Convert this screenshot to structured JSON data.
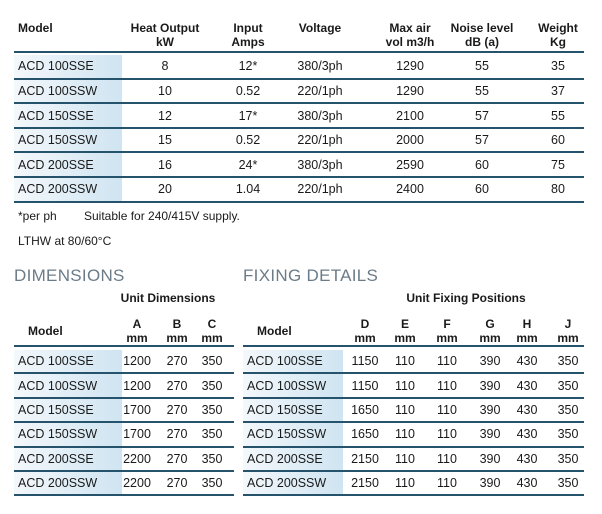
{
  "specs": {
    "headers": [
      [
        "Model"
      ],
      [
        "Heat Output",
        "kW"
      ],
      [
        "Input",
        "Amps"
      ],
      [
        "Voltage"
      ],
      [
        "Max air",
        "vol m3/h"
      ],
      [
        "Noise level",
        "dB (a)"
      ],
      [
        "Weight",
        "Kg"
      ]
    ],
    "rows": [
      [
        "ACD 100SSE",
        "8",
        "12*",
        "380/3ph",
        "1290",
        "55",
        "35"
      ],
      [
        "ACD 100SSW",
        "10",
        "0.52",
        "220/1ph",
        "1290",
        "55",
        "37"
      ],
      [
        "ACD 150SSE",
        "12",
        "17*",
        "380/3ph",
        "2100",
        "57",
        "55"
      ],
      [
        "ACD 150SSW",
        "15",
        "0.52",
        "220/1ph",
        "2000",
        "57",
        "60"
      ],
      [
        "ACD 200SSE",
        "16",
        "24*",
        "380/3ph",
        "2590",
        "60",
        "75"
      ],
      [
        "ACD 200SSW",
        "20",
        "1.04",
        "220/1ph",
        "2400",
        "60",
        "80"
      ]
    ]
  },
  "notes": [
    "*per ph",
    "Suitable for 240/415V supply.",
    "LTHW at 80/60°C"
  ],
  "dimensions": {
    "title": "DIMENSIONS",
    "subtitle": "Unit Dimensions",
    "headers": [
      [
        "Model"
      ],
      [
        "A",
        "mm"
      ],
      [
        "B",
        "mm"
      ],
      [
        "C",
        "mm"
      ]
    ],
    "rows": [
      [
        "ACD 100SSE",
        "1200",
        "270",
        "350"
      ],
      [
        "ACD 100SSW",
        "1200",
        "270",
        "350"
      ],
      [
        "ACD 150SSE",
        "1700",
        "270",
        "350"
      ],
      [
        "ACD 150SSW",
        "1700",
        "270",
        "350"
      ],
      [
        "ACD 200SSE",
        "2200",
        "270",
        "350"
      ],
      [
        "ACD 200SSW",
        "2200",
        "270",
        "350"
      ]
    ]
  },
  "fixing": {
    "title": "FIXING DETAILS",
    "subtitle": "Unit Fixing Positions",
    "headers": [
      [
        "Model"
      ],
      [
        "D",
        "mm"
      ],
      [
        "E",
        "mm"
      ],
      [
        "F",
        "mm"
      ],
      [
        "G",
        "mm"
      ],
      [
        "H",
        "mm"
      ],
      [
        "J",
        "mm"
      ]
    ],
    "rows": [
      [
        "ACD 100SSE",
        "1150",
        "110",
        "110",
        "390",
        "430",
        "350"
      ],
      [
        "ACD 100SSW",
        "1150",
        "110",
        "110",
        "390",
        "430",
        "350"
      ],
      [
        "ACD 150SSE",
        "1650",
        "110",
        "110",
        "390",
        "430",
        "350"
      ],
      [
        "ACD 150SSW",
        "1650",
        "110",
        "110",
        "390",
        "430",
        "350"
      ],
      [
        "ACD 200SSE",
        "2150",
        "110",
        "110",
        "390",
        "430",
        "350"
      ],
      [
        "ACD 200SSW",
        "2150",
        "110",
        "110",
        "390",
        "430",
        "350"
      ]
    ]
  }
}
